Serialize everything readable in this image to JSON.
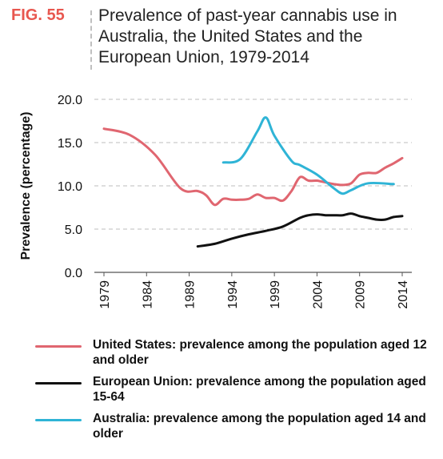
{
  "figure": {
    "label": "FIG. 55",
    "title": "Prevalence of past-year cannabis use in Australia, the United States and the European Union, 1979-2014"
  },
  "colors": {
    "accent": "#e8574f",
    "grid": "#bdbdbd",
    "axis": "#555555",
    "text": "#111111"
  },
  "chart_data": {
    "type": "line",
    "title": "Prevalence of past-year cannabis use in Australia, the United States and the European Union, 1979-2014",
    "xlabel": "",
    "ylabel": "Prevalence (percentage)",
    "xlim": [
      1979,
      2014
    ],
    "ylim": [
      0,
      20
    ],
    "y_ticks": [
      "0.0",
      "5.0",
      "10.0",
      "15.0",
      "20.0"
    ],
    "x_ticks": [
      "1979",
      "1984",
      "1989",
      "1994",
      "1999",
      "2004",
      "2009",
      "2014"
    ],
    "grid": "horizontal dashed",
    "legend_position": "bottom",
    "series": [
      {
        "name": "United States: prevalence among the population aged 12 and older",
        "color": "#e06670",
        "x": [
          1979,
          1982,
          1985,
          1988,
          1990,
          1991,
          1992,
          1993,
          1994,
          1995,
          1996,
          1997,
          1998,
          1999,
          2000,
          2001,
          2002,
          2003,
          2004,
          2005,
          2006,
          2007,
          2008,
          2009,
          2010,
          2011,
          2012,
          2013,
          2014
        ],
        "y": [
          16.6,
          15.9,
          13.6,
          9.7,
          9.4,
          8.9,
          7.8,
          8.5,
          8.4,
          8.4,
          8.5,
          9.0,
          8.6,
          8.6,
          8.3,
          9.4,
          11.0,
          10.6,
          10.6,
          10.4,
          10.2,
          10.1,
          10.3,
          11.3,
          11.5,
          11.5,
          12.1,
          12.6,
          13.2
        ]
      },
      {
        "name": "European Union: prevalence among the population aged 15-64",
        "color": "#111111",
        "x": [
          1990,
          1992,
          1994,
          1996,
          1998,
          2000,
          2002,
          2003,
          2004,
          2005,
          2006,
          2007,
          2008,
          2009,
          2010,
          2011,
          2012,
          2013,
          2014
        ],
        "y": [
          3.0,
          3.3,
          3.9,
          4.4,
          4.8,
          5.3,
          6.3,
          6.6,
          6.7,
          6.6,
          6.6,
          6.6,
          6.8,
          6.5,
          6.3,
          6.1,
          6.1,
          6.4,
          6.5
        ]
      },
      {
        "name": "Australia: prevalence among the population aged 14 and older",
        "color": "#2fb4d6",
        "x": [
          1993,
          1995,
          1997,
          1998,
          1999,
          2001,
          2002,
          2004,
          2006,
          2007,
          2008,
          2010,
          2013
        ],
        "y": [
          12.7,
          13.1,
          16.3,
          17.9,
          15.8,
          12.9,
          12.4,
          11.3,
          9.7,
          9.1,
          9.5,
          10.3,
          10.2
        ]
      }
    ]
  }
}
